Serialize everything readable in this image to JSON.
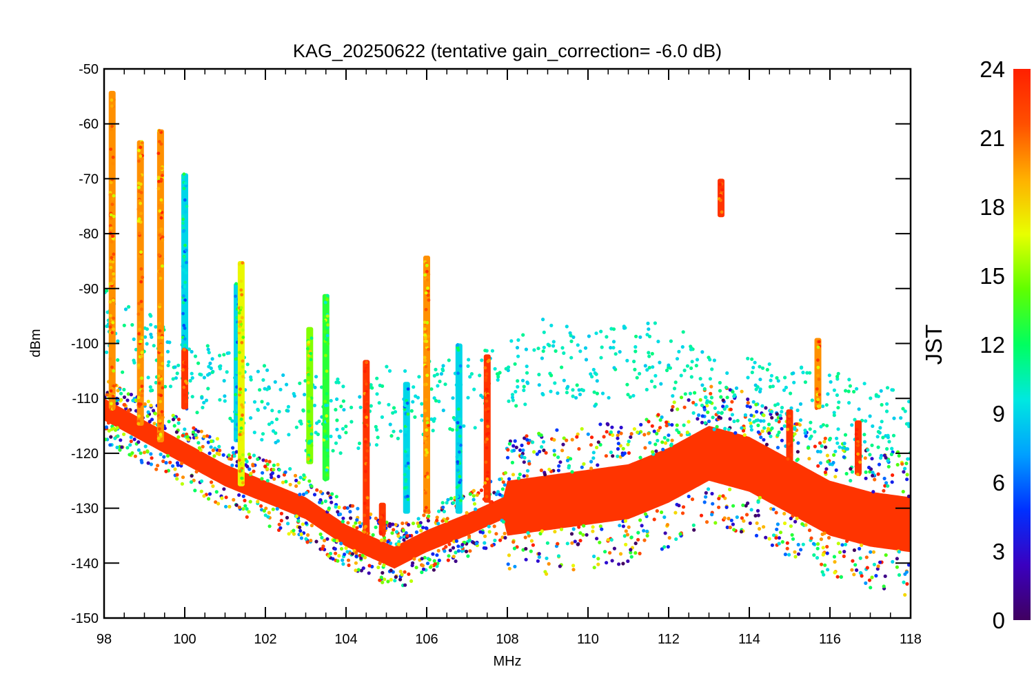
{
  "chart_data": {
    "type": "scatter",
    "title": "KAG_20250622 (tentative gain_correction= -6.0 dB)",
    "xlabel": "MHz",
    "ylabel": "dBm",
    "xlim": [
      98,
      118
    ],
    "ylim": [
      -150,
      -50
    ],
    "x_ticks": [
      "98",
      "100",
      "102",
      "104",
      "106",
      "108",
      "110",
      "112",
      "114",
      "116",
      "118"
    ],
    "y_ticks": [
      "-50",
      "-60",
      "-70",
      "-80",
      "-90",
      "-100",
      "-110",
      "-120",
      "-130",
      "-140",
      "-150"
    ],
    "grid": false,
    "colorbar": {
      "label": "JST",
      "range": [
        0,
        24
      ],
      "ticks": [
        "0",
        "3",
        "6",
        "9",
        "12",
        "15",
        "18",
        "21",
        "24"
      ],
      "colormap": [
        "#400060",
        "#3a00c0",
        "#0030ff",
        "#00a0ff",
        "#00e8e0",
        "#00ff60",
        "#60ff00",
        "#e8ff00",
        "#ffb000",
        "#ff5000",
        "#ff2000"
      ]
    },
    "series": [
      {
        "kind": "noise_floor",
        "x": [
          98,
          99,
          100,
          101,
          102,
          103,
          104,
          104.9,
          105.2,
          106,
          107,
          107.9,
          108,
          109,
          110,
          111,
          112,
          113,
          114,
          115,
          116,
          117,
          118
        ],
        "y": [
          -112,
          -116,
          -120,
          -124,
          -127,
          -130,
          -135,
          -138,
          -139,
          -136,
          -133,
          -130,
          -130,
          -129,
          -128,
          -127,
          -124,
          -120,
          -122,
          -126,
          -130,
          -132,
          -133
        ],
        "spread_db": [
          2,
          2,
          2,
          2,
          2,
          2,
          2,
          2,
          2,
          2,
          2,
          2,
          8,
          8,
          8,
          8,
          8,
          8,
          8,
          8,
          8,
          8,
          8
        ],
        "jst": 23
      },
      {
        "kind": "scattered_points",
        "x": [
          98.2,
          99,
          100,
          101,
          102,
          103,
          104,
          105,
          106,
          107,
          108,
          109,
          110,
          111,
          112,
          113,
          114,
          115,
          116,
          117,
          118
        ],
        "y": [
          -102,
          -106,
          -110,
          -113,
          -116,
          -118,
          -118,
          -116,
          -115,
          -114,
          -112,
          -107,
          -110,
          -108,
          -107,
          -114,
          -114,
          -116,
          -117,
          -119,
          -120
        ],
        "jst": 10
      }
    ],
    "signals": [
      {
        "freq": 98.2,
        "top": -54,
        "bottom": -112,
        "jst": 20
      },
      {
        "freq": 98.9,
        "top": -63,
        "bottom": -115,
        "jst": 20
      },
      {
        "freq": 99.4,
        "top": -61,
        "bottom": -118,
        "jst": 20
      },
      {
        "freq": 100.0,
        "top": -69,
        "bottom": -112,
        "jst": 9
      },
      {
        "freq": 100.0,
        "top": -101,
        "bottom": -112,
        "jst": 23
      },
      {
        "freq": 101.3,
        "top": -89,
        "bottom": -118,
        "jst": 9
      },
      {
        "freq": 101.4,
        "top": -85,
        "bottom": -126,
        "jst": 17
      },
      {
        "freq": 103.1,
        "top": -97,
        "bottom": -122,
        "jst": 15
      },
      {
        "freq": 103.5,
        "top": -91,
        "bottom": -125,
        "jst": 13
      },
      {
        "freq": 104.5,
        "top": -103,
        "bottom": -135,
        "jst": 23
      },
      {
        "freq": 104.9,
        "top": -129,
        "bottom": -135,
        "jst": 23
      },
      {
        "freq": 105.5,
        "top": -107,
        "bottom": -131,
        "jst": 9
      },
      {
        "freq": 106.0,
        "top": -84,
        "bottom": -131,
        "jst": 20
      },
      {
        "freq": 106.8,
        "top": -100,
        "bottom": -131,
        "jst": 9
      },
      {
        "freq": 107.5,
        "top": -102,
        "bottom": -129,
        "jst": 23
      },
      {
        "freq": 113.3,
        "top": -70,
        "bottom": -77,
        "jst": 23
      },
      {
        "freq": 115.0,
        "top": -112,
        "bottom": -122,
        "jst": 23
      },
      {
        "freq": 115.7,
        "top": -99,
        "bottom": -112,
        "jst": 20
      },
      {
        "freq": 116.7,
        "top": -114,
        "bottom": -124,
        "jst": 23
      }
    ]
  }
}
